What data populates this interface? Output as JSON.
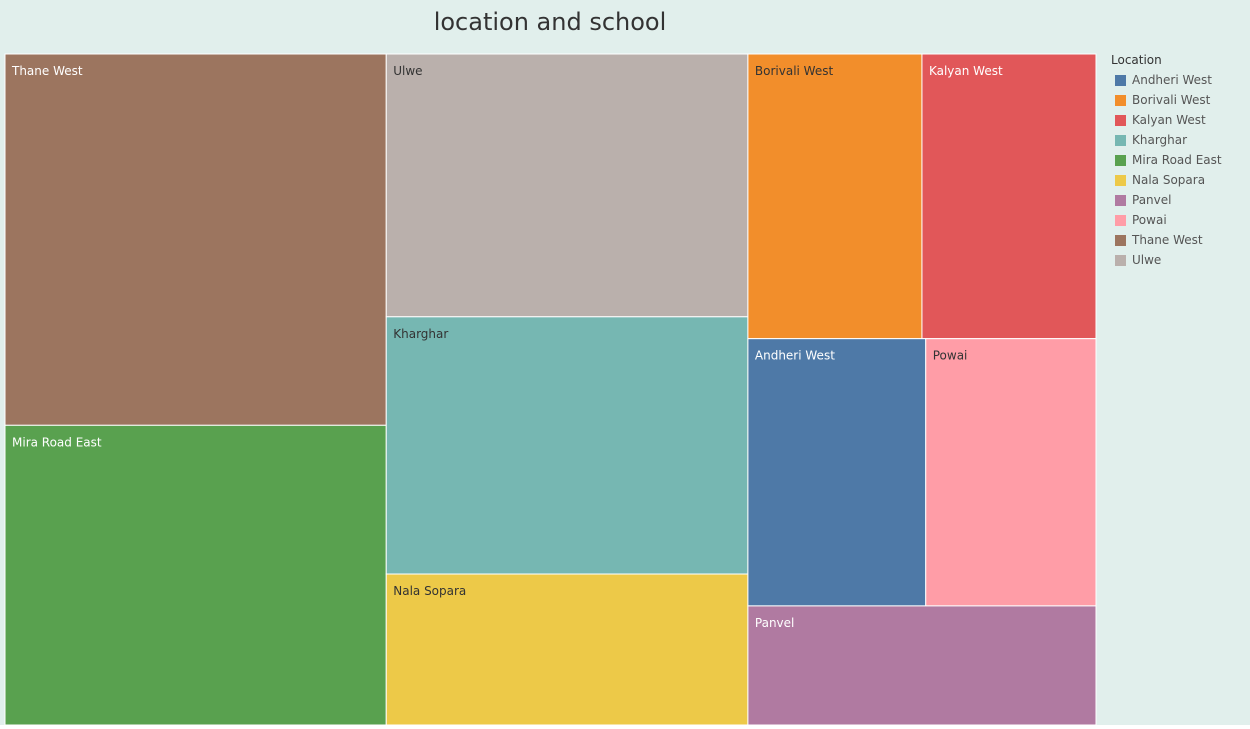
{
  "title": "location and school",
  "chart_data": {
    "type": "treemap",
    "title": "location and school",
    "legend": {
      "title": "Location",
      "position": "right",
      "items": [
        {
          "label": "Andheri West",
          "color": "#4e79a7"
        },
        {
          "label": "Borivali West",
          "color": "#f28e2b"
        },
        {
          "label": "Kalyan West",
          "color": "#e15759"
        },
        {
          "label": "Kharghar",
          "color": "#76b7b2"
        },
        {
          "label": "Mira Road East",
          "color": "#59a14f"
        },
        {
          "label": "Nala Sopara",
          "color": "#edc948"
        },
        {
          "label": "Panvel",
          "color": "#b07aa1"
        },
        {
          "label": "Powai",
          "color": "#ff9da7"
        },
        {
          "label": "Thane West",
          "color": "#9c755f"
        },
        {
          "label": "Ulwe",
          "color": "#bab0ac"
        }
      ]
    },
    "tiles": [
      {
        "label": "Thane West",
        "value": 14.0,
        "color": "#9c755f",
        "text_color": "#ffffff"
      },
      {
        "label": "Mira Road East",
        "value": 11.3,
        "color": "#59a14f",
        "text_color": "#ffffff"
      },
      {
        "label": "Ulwe",
        "value": 9.4,
        "color": "#bab0ac",
        "text_color": "#333333"
      },
      {
        "label": "Kharghar",
        "value": 9.2,
        "color": "#76b7b2",
        "text_color": "#333333"
      },
      {
        "label": "Nala Sopara",
        "value": 5.4,
        "color": "#edc948",
        "text_color": "#333333"
      },
      {
        "label": "Borivali West",
        "value": 4.9,
        "color": "#f28e2b",
        "text_color": "#333333"
      },
      {
        "label": "Kalyan West",
        "value": 4.9,
        "color": "#e15759",
        "text_color": "#ffffff"
      },
      {
        "label": "Andheri West",
        "value": 4.7,
        "color": "#4e79a7",
        "text_color": "#ffffff"
      },
      {
        "label": "Powai",
        "value": 4.5,
        "color": "#ff9da7",
        "text_color": "#333333"
      },
      {
        "label": "Panvel",
        "value": 4.1,
        "color": "#b07aa1",
        "text_color": "#ffffff"
      }
    ]
  }
}
